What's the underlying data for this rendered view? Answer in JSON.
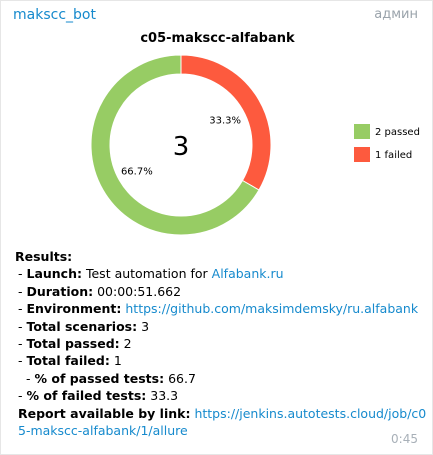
{
  "message": {
    "sender": "makscc_bot",
    "role": "админ",
    "time": "0:45"
  },
  "chart_data": {
    "type": "pie",
    "title": "c05-makscc-alfabank",
    "center_label": "3",
    "slices": [
      {
        "label": "passed",
        "value": 2,
        "percent_label": "66.7%",
        "color": "#97cc64"
      },
      {
        "label": "failed",
        "value": 1,
        "percent_label": "33.3%",
        "color": "#fd5a3e"
      }
    ],
    "legend": [
      {
        "text": "2 passed",
        "color": "#97cc64"
      },
      {
        "text": "1 failed",
        "color": "#fd5a3e"
      }
    ],
    "legend_position": "right",
    "donut": true
  },
  "results": {
    "heading": "Results:",
    "launch_label": "Launch:",
    "launch_text": "Test automation for",
    "launch_link": "Alfabank.ru",
    "duration_label": "Duration:",
    "duration_value": "00:00:51.662",
    "environment_label": "Environment:",
    "environment_link": "https://github.com/maksimdemsky/ru.alfabank",
    "total_scenarios_label": "Total scenarios:",
    "total_scenarios_value": "3",
    "total_passed_label": "Total passed:",
    "total_passed_value": "2",
    "total_failed_label": "Total failed:",
    "total_failed_value": "1",
    "pct_passed_label": "% of passed tests:",
    "pct_passed_value": "66.7",
    "pct_failed_label": "% of failed tests:",
    "pct_failed_value": "33.3",
    "report_label": "Report available by link:",
    "report_link": "https://jenkins.autotests.cloud/job/c05-makscc-alfabank/1/allure"
  }
}
